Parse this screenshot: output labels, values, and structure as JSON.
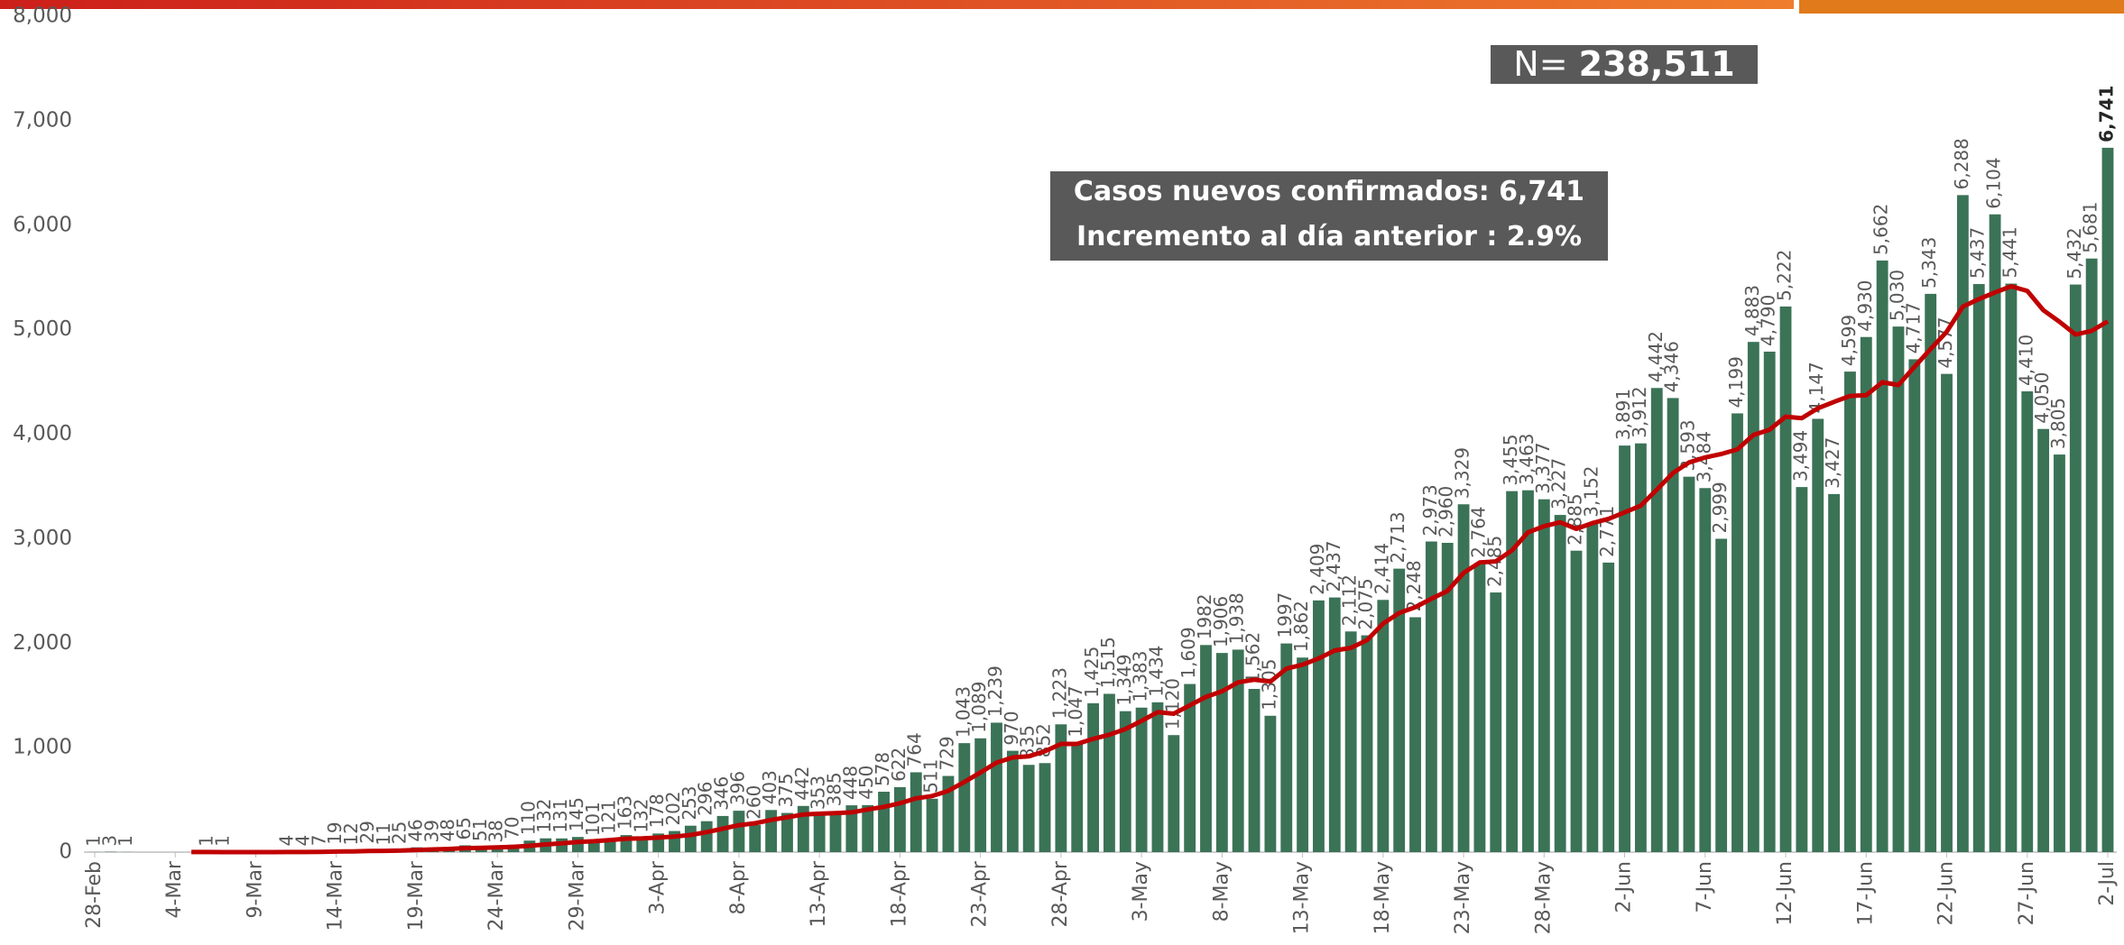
{
  "chart_data": {
    "type": "bar",
    "categories": [
      "28-Feb",
      null,
      null,
      null,
      null,
      "4-Mar",
      null,
      null,
      null,
      null,
      "9-Mar",
      null,
      null,
      null,
      null,
      "14-Mar",
      null,
      null,
      null,
      null,
      "19-Mar",
      null,
      null,
      null,
      null,
      "24-Mar",
      null,
      null,
      null,
      null,
      "29-Mar",
      null,
      null,
      null,
      null,
      "3-Apr",
      null,
      null,
      null,
      null,
      "8-Apr",
      null,
      null,
      null,
      null,
      "13-Apr",
      null,
      null,
      null,
      null,
      "18-Apr",
      null,
      null,
      null,
      null,
      "23-Apr",
      null,
      null,
      null,
      null,
      "28-Apr",
      null,
      null,
      null,
      null,
      "3-May",
      null,
      null,
      null,
      null,
      "8-May",
      null,
      null,
      null,
      null,
      "13-May",
      null,
      null,
      null,
      null,
      "18-May",
      null,
      null,
      null,
      null,
      "23-May",
      null,
      null,
      null,
      null,
      "28-May",
      null,
      null,
      null,
      null,
      "2-Jun",
      null,
      null,
      null,
      null,
      "7-Jun",
      null,
      null,
      null,
      null,
      "12-Jun",
      null,
      null,
      null,
      null,
      "17-Jun",
      null,
      null,
      null,
      null,
      "22-Jun",
      null,
      null,
      null,
      null,
      "27-Jun",
      null,
      null,
      null,
      null,
      "2-Jul"
    ],
    "series": [
      {
        "type": "bar",
        "color": "#3b7357",
        "values": [
          1,
          3,
          1,
          0,
          0,
          0,
          0,
          1,
          1,
          0,
          0,
          0,
          4,
          4,
          7,
          19,
          12,
          29,
          11,
          25,
          46,
          39,
          48,
          65,
          51,
          38,
          70,
          110,
          132,
          131,
          145,
          101,
          121,
          163,
          132,
          178,
          202,
          253,
          296,
          346,
          396,
          260,
          403,
          375,
          442,
          353,
          385,
          448,
          450,
          578,
          622,
          764,
          511,
          729,
          1043,
          1089,
          1239,
          970,
          835,
          852,
          1223,
          1047,
          1425,
          1515,
          1349,
          1383,
          1434,
          1120,
          1609,
          1982,
          1906,
          1938,
          1562,
          1305,
          1997,
          1862,
          2409,
          2437,
          2112,
          2075,
          2414,
          2713,
          2248,
          2973,
          2960,
          3329,
          2764,
          2485,
          3455,
          3463,
          3377,
          3227,
          2885,
          3152,
          2771,
          3891,
          3912,
          4442,
          4346,
          3593,
          3484,
          2999,
          4199,
          4883,
          4790,
          5222,
          3494,
          4147,
          3427,
          4599,
          4930,
          5662,
          5030,
          4717,
          5343,
          4577,
          6288,
          5437,
          6104,
          5441,
          4410,
          4050,
          3805,
          5432,
          5681,
          6741
        ],
        "value_labels": [
          "1",
          "3",
          "1",
          null,
          null,
          null,
          null,
          "1",
          "1",
          null,
          null,
          null,
          "4",
          "4",
          "7",
          "19",
          "12",
          "29",
          "11",
          "25",
          "46",
          "39",
          "48",
          "65",
          "51",
          "38",
          "70",
          "110",
          "132",
          "131",
          "145",
          "101",
          "121",
          "163",
          "132",
          "178",
          "202",
          "253",
          "296",
          "346",
          "396",
          "260",
          "403",
          "375",
          "442",
          "353",
          "385",
          "448",
          "450",
          "578",
          "622",
          "764",
          "511",
          "729",
          "1,043",
          "1,089",
          "1,239",
          "970",
          "835",
          "852",
          "1,223",
          "1,047",
          "1,425",
          "1,515",
          "1,349",
          "1,383",
          "1,434",
          "1,120",
          "1,609",
          "1982",
          "1,906",
          "1,938",
          "1,562",
          "1,305",
          "1997",
          "1,862",
          "2,409",
          "2,437",
          "2,112",
          "2,075",
          "2,414",
          "2,713",
          "2,248",
          "2,973",
          "2,960",
          "3,329",
          "2,764",
          "2,485",
          "3,455",
          "3,463",
          "3,377",
          "3,227",
          "2,885",
          "3,152",
          "2,771",
          "3,891",
          "3,912",
          "4,442",
          "4,346",
          "3,593",
          "3,484",
          "2,999",
          "4,199",
          "4,883",
          "4,790",
          "5,222",
          "3,494",
          "4,147",
          "3,427",
          "4,599",
          "4,930",
          "5,662",
          "5,030",
          "4,717",
          "5,343",
          "4,577",
          "6,288",
          "5,437",
          "6,104",
          "5,441",
          "4,410",
          "4,050",
          "3,805",
          "5,432",
          "5,681",
          "6,741"
        ]
      },
      {
        "type": "line",
        "color": "#c00000",
        "values": [
          null,
          null,
          null,
          null,
          null,
          null,
          1,
          1,
          0,
          0,
          0,
          0,
          1,
          1,
          2,
          5,
          7,
          11,
          12,
          15,
          21,
          26,
          30,
          38,
          41,
          45,
          51,
          60,
          73,
          85,
          97,
          104,
          116,
          129,
          132,
          139,
          149,
          164,
          192,
          224,
          258,
          276,
          308,
          333,
          360,
          368,
          373,
          381,
          408,
          433,
          468,
          514,
          537,
          586,
          671,
          762,
          857,
          906,
          917,
          965,
          1036,
          1036,
          1084,
          1124,
          1178,
          1256,
          1339,
          1325,
          1405,
          1485,
          1540,
          1625,
          1650,
          1632,
          1757,
          1793,
          1854,
          1930,
          1955,
          2028,
          2187,
          2289,
          2344,
          2425,
          2499,
          2673,
          2772,
          2782,
          2888,
          3061,
          3119,
          3157,
          3094,
          3149,
          3190,
          3252,
          3316,
          3469,
          3628,
          3730,
          3777,
          3810,
          3854,
          3992,
          4042,
          4167,
          4153,
          4248,
          4309,
          4366,
          4373,
          4497,
          4470,
          4645,
          4815,
          4980,
          5221,
          5293,
          5357,
          5415,
          5371,
          5187,
          5076,
          4954,
          4989,
          5080
        ]
      }
    ],
    "ylim": [
      0,
      8000
    ],
    "yticks": [
      0,
      {
        "value": 1000,
        "label": "1,000"
      },
      {
        "value": 2000,
        "label": "2,000"
      },
      {
        "value": 3000,
        "label": "3,000"
      },
      {
        "value": 4000,
        "label": "4,000"
      },
      {
        "value": 5000,
        "label": "5,000"
      },
      {
        "value": 6000,
        "label": "6,000"
      },
      {
        "value": 7000,
        "label": "7,000"
      },
      {
        "value": 8000,
        "label": "8,000"
      }
    ],
    "grid": false,
    "annotations": {
      "total": {
        "label": "N=",
        "value": "238,511"
      },
      "box": [
        {
          "label": "Casos nuevos confirmados:",
          "value": "6,741"
        },
        {
          "label": "Incremento al día anterior :",
          "value": "2.9%"
        }
      ]
    }
  }
}
